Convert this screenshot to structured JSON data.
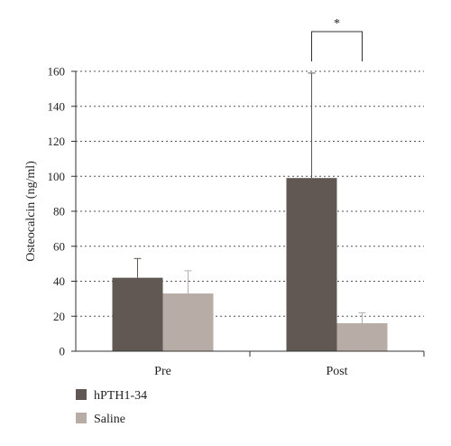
{
  "chart_data": {
    "type": "bar",
    "title": "",
    "xlabel": "",
    "ylabel": "Osteocalcin (ng/ml)",
    "ylim": [
      0,
      160
    ],
    "yticks": [
      0,
      20,
      40,
      60,
      80,
      100,
      120,
      140,
      160
    ],
    "grid": true,
    "legend_position": "bottom-left",
    "categories": [
      "Pre",
      "Post"
    ],
    "series": [
      {
        "name": "hPTH1-34",
        "values": [
          42,
          99
        ],
        "error": [
          11,
          60
        ],
        "color": "#615853"
      },
      {
        "name": "Saline",
        "values": [
          33,
          16
        ],
        "error": [
          13,
          6
        ],
        "color": "#b8aca6"
      }
    ],
    "significance": [
      {
        "category": "Post",
        "label": "*"
      }
    ]
  }
}
